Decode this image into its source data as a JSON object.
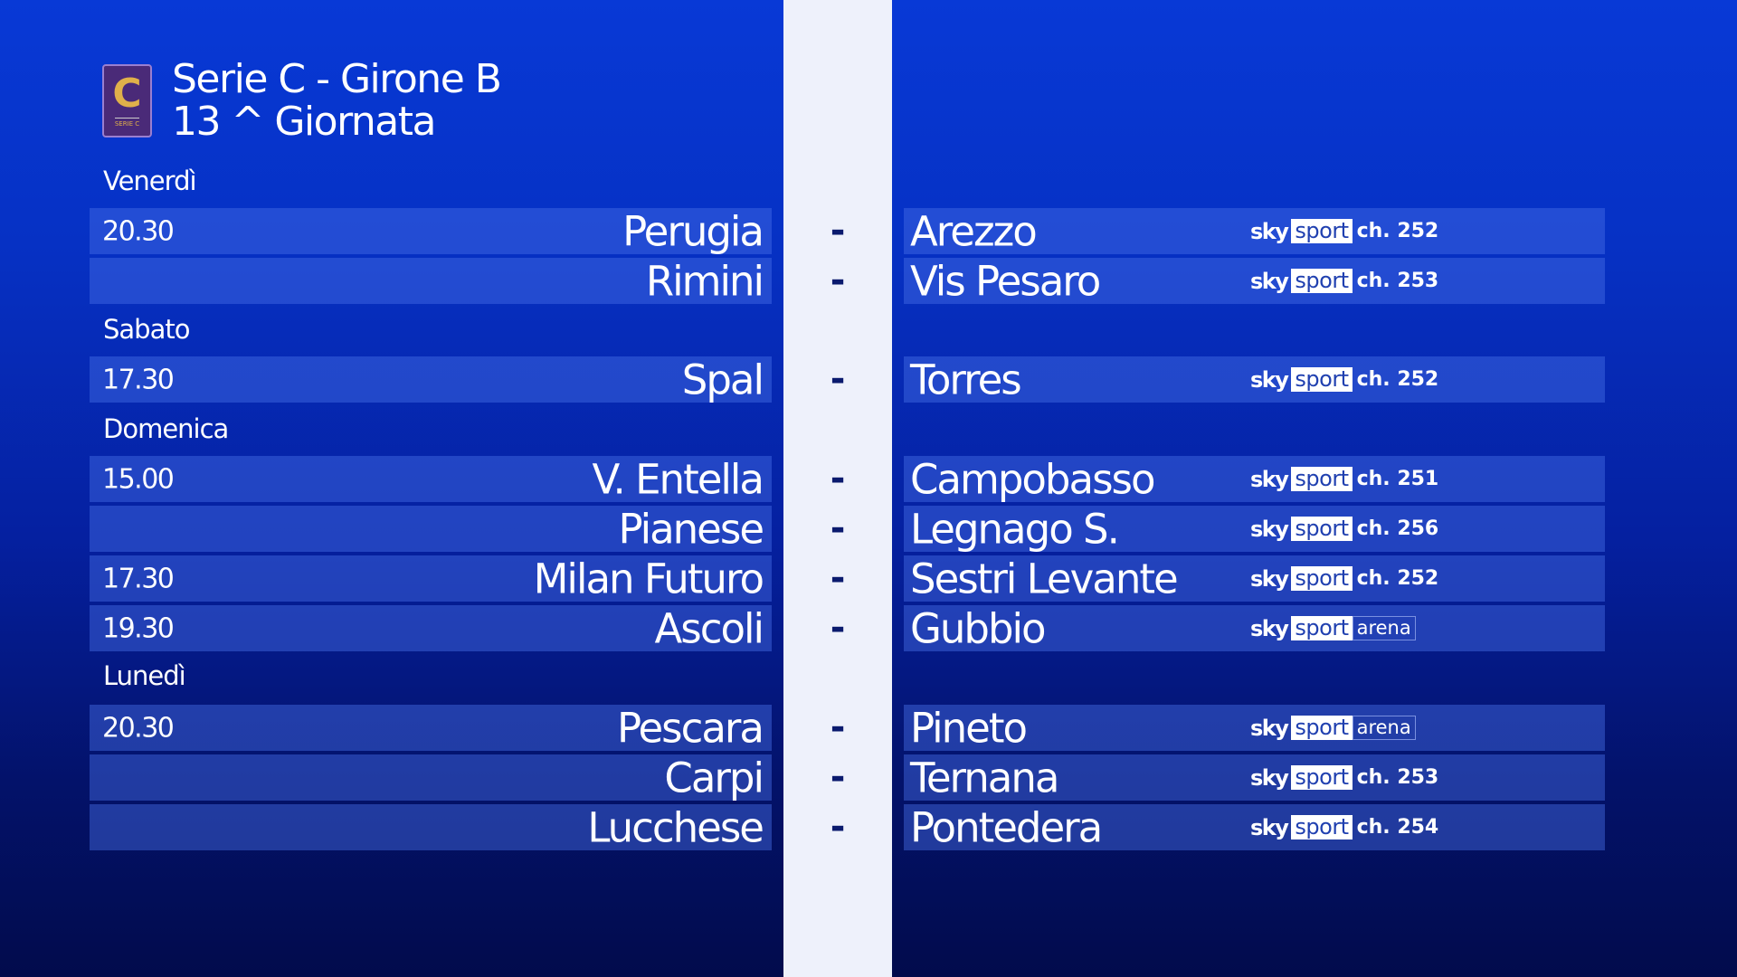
{
  "header": {
    "title": "Serie C - Girone B",
    "round": "13 ^ Giornata",
    "logo_text": "SERIE C",
    "logo_letter": "C"
  },
  "days": [
    "Venerdì",
    "Sabato",
    "Domenica",
    "Lunedì"
  ],
  "matches": [
    {
      "time": "20.30",
      "home": "Perugia",
      "sep": "-",
      "away": "Arezzo",
      "brand": "sky",
      "network": "sport",
      "channel": "ch. 252"
    },
    {
      "time": "",
      "home": "Rimini",
      "sep": "-",
      "away": "Vis Pesaro",
      "brand": "sky",
      "network": "sport",
      "channel": "ch. 253"
    },
    {
      "time": "17.30",
      "home": "Spal",
      "sep": "-",
      "away": "Torres",
      "brand": "sky",
      "network": "sport",
      "channel": "ch. 252"
    },
    {
      "time": "15.00",
      "home": "V. Entella",
      "sep": "-",
      "away": "Campobasso",
      "brand": "sky",
      "network": "sport",
      "channel": "ch. 251"
    },
    {
      "time": "",
      "home": "Pianese",
      "sep": "-",
      "away": "Legnago S.",
      "brand": "sky",
      "network": "sport",
      "channel": "ch. 256"
    },
    {
      "time": "17.30",
      "home": "Milan Futuro",
      "sep": "-",
      "away": "Sestri Levante",
      "brand": "sky",
      "network": "sport",
      "channel": "ch. 252"
    },
    {
      "time": "19.30",
      "home": "Ascoli",
      "sep": "-",
      "away": "Gubbio",
      "brand": "sky",
      "network": "sport",
      "channel": "arena"
    },
    {
      "time": "20.30",
      "home": "Pescara",
      "sep": "-",
      "away": "Pineto",
      "brand": "sky",
      "network": "sport",
      "channel": "arena"
    },
    {
      "time": "",
      "home": "Carpi",
      "sep": "-",
      "away": "Ternana",
      "brand": "sky",
      "network": "sport",
      "channel": "ch. 253"
    },
    {
      "time": "",
      "home": "Lucchese",
      "sep": "-",
      "away": "Pontedera",
      "brand": "sky",
      "network": "sport",
      "channel": "ch. 254"
    }
  ]
}
